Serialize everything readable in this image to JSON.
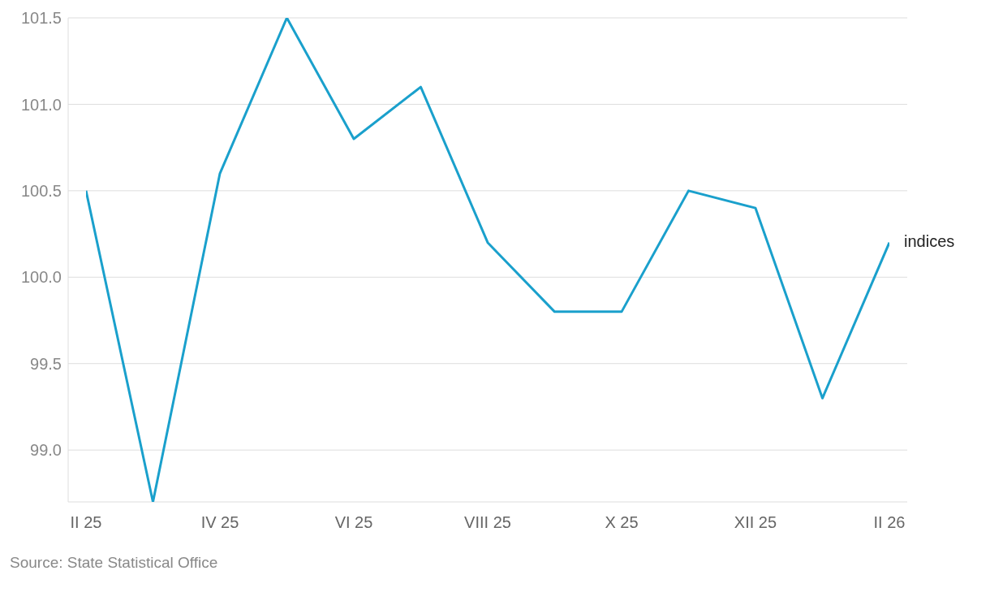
{
  "chart_data": {
    "type": "line",
    "categories": [
      "II 25",
      null,
      "IV 25",
      null,
      "VI 25",
      null,
      "VIII 25",
      null,
      "X 25",
      null,
      "XII 25",
      null,
      "II 26"
    ],
    "series": [
      {
        "name": "indices",
        "color": "#1aa0cc",
        "values": [
          100.5,
          98.7,
          100.6,
          101.5,
          100.8,
          101.1,
          100.2,
          99.8,
          99.8,
          100.5,
          100.4,
          99.3,
          100.2
        ]
      }
    ],
    "ylim": [
      98.7,
      101.5
    ],
    "yticks": [
      {
        "value": 99,
        "label": "99.0"
      },
      99.5,
      {
        "value": 100,
        "label": "100.0"
      },
      100.5,
      {
        "value": 101,
        "label": "101.0"
      },
      101.5
    ],
    "grid": "y",
    "legend": false,
    "marker": "none",
    "line_style": "solid",
    "annotations": [
      "Source: State Statistical Office"
    ]
  }
}
